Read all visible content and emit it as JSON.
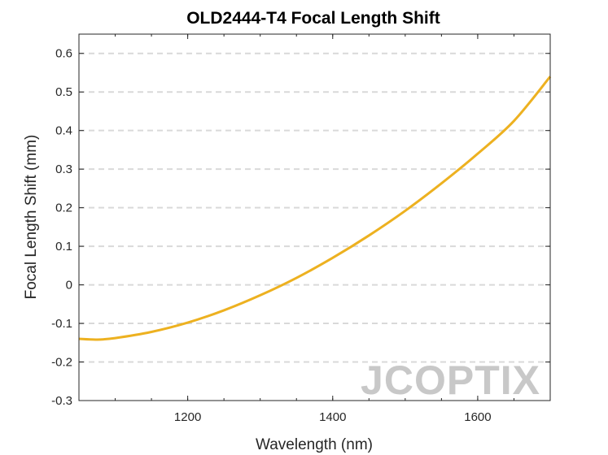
{
  "chart_data": {
    "type": "line",
    "title": "OLD2444-T4 Focal Length Shift",
    "xlabel": "Wavelength (nm)",
    "ylabel": "Focal Length Shift (mm)",
    "xlim": [
      1050,
      1700
    ],
    "ylim": [
      -0.3,
      0.65
    ],
    "xticks": [
      1200,
      1400,
      1600
    ],
    "yticks": [
      -0.3,
      -0.2,
      -0.1,
      0,
      0.1,
      0.2,
      0.3,
      0.4,
      0.5,
      0.6
    ],
    "ytick_labels": [
      "-0.3",
      "-0.2",
      "-0.1",
      "0",
      "0.1",
      "0.2",
      "0.3",
      "0.4",
      "0.5",
      "0.6"
    ],
    "grid": "horizontal-dashed",
    "series": [
      {
        "color": "#EDB120",
        "x": [
          1050,
          1075,
          1100,
          1150,
          1200,
          1250,
          1300,
          1350,
          1400,
          1450,
          1500,
          1550,
          1600,
          1650,
          1700
        ],
        "y": [
          -0.14,
          -0.142,
          -0.138,
          -0.122,
          -0.098,
          -0.066,
          -0.027,
          0.018,
          0.07,
          0.128,
          0.192,
          0.263,
          0.34,
          0.425,
          0.54
        ]
      }
    ],
    "watermark": "JCOPTIX"
  }
}
